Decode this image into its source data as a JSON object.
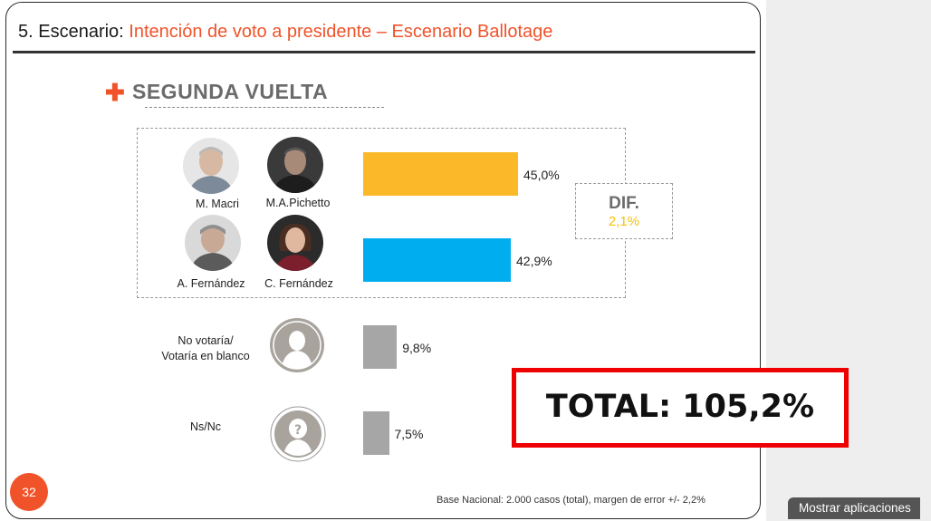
{
  "title": {
    "number": "5. Escenario:",
    "subtitle": "Intención de voto a presidente – Escenario Ballotage"
  },
  "section": {
    "label": "SEGUNDA VUELTA"
  },
  "candidates": {
    "macri": "M. Macri",
    "pichetto": "M.A.Pichetto",
    "a_fernandez": "A. Fernández",
    "c_fernandez": "C. Fernández"
  },
  "dif": {
    "title": "DIF.",
    "value": "2,1%"
  },
  "categories": {
    "no_votaria_1": "No votaría/",
    "no_votaria_2": "Votaría en blanco",
    "nsnc": "Ns/Nc"
  },
  "chart_data": {
    "type": "bar",
    "orientation": "horizontal",
    "categories": [
      "M. Macri / M.A.Pichetto",
      "A. Fernández / C. Fernández",
      "No votaría/ Votaría en blanco",
      "Ns/Nc"
    ],
    "values": [
      45.0,
      42.9,
      9.8,
      7.5
    ],
    "value_labels": [
      "45,0%",
      "42,9%",
      "9,8%",
      "7,5%"
    ],
    "colors": [
      "#fbb829",
      "#00aeef",
      "#a6a6a6",
      "#a6a6a6"
    ],
    "title": "SEGUNDA VUELTA"
  },
  "total": {
    "text": "TOTAL: 105,2%"
  },
  "page": {
    "number": "32"
  },
  "footer": {
    "text": "Base Nacional: 2.000 casos (total), margen de error +/- 2,2%"
  },
  "taskbar": {
    "show_apps": "Mostrar aplicaciones"
  },
  "colors": {
    "accent": "#f0532a",
    "macri_bar": "#fbb829",
    "fernandez_bar": "#00aeef",
    "other_bar": "#a6a6a6",
    "total_border": "#ee0000"
  }
}
